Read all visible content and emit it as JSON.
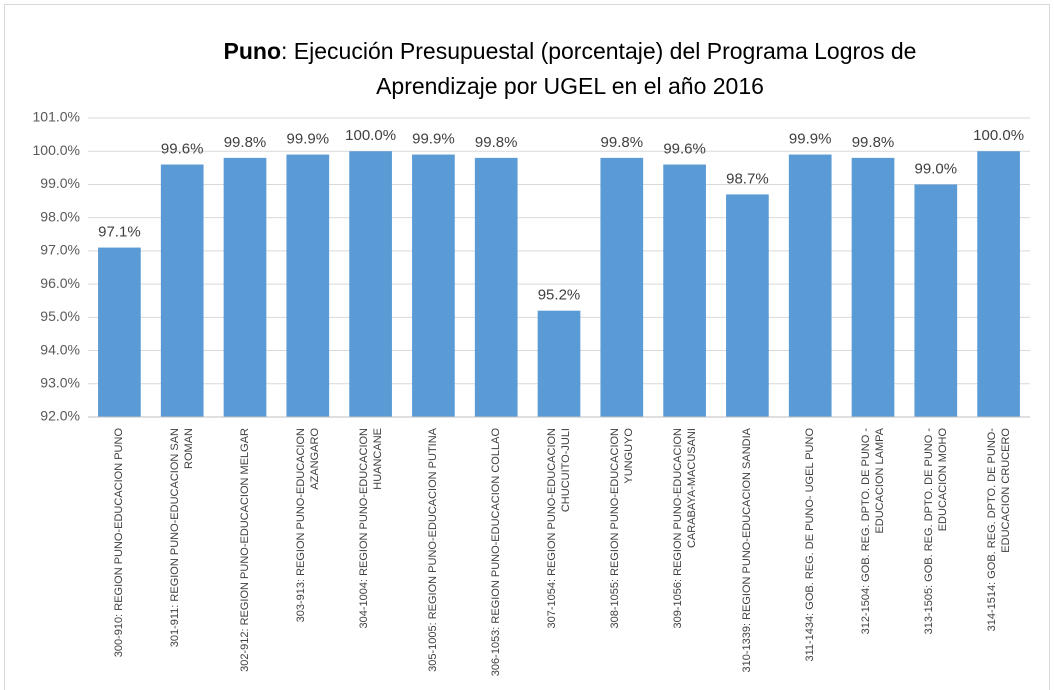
{
  "chart_data": {
    "type": "bar",
    "title": [
      "Puno",
      ": Ejecución Presupuestal (porcentaje) del Programa Logros de Aprendizaje por UGEL en el año 2016"
    ],
    "categories": [
      "300-910: REGION PUNO-EDUCACION PUNO",
      "301-911: REGION PUNO-EDUCACION SAN ROMAN",
      "302-912: REGION PUNO-EDUCACION MELGAR",
      "303-913: REGION PUNO-EDUCACION AZANGARO",
      "304-1004: REGION PUNO-EDUCACION HUANCANE",
      "305-1005: REGION PUNO-EDUCACION PUTINA",
      "306-1053: REGION PUNO-EDUCACION COLLAO",
      "307-1054: REGION PUNO-EDUCACION CHUCUITO-JULI",
      "308-1055: REGION PUNO-EDUCACION YUNGUYO",
      "309-1056: REGION PUNO-EDUCACION CARABAYA-MACUSANI",
      "310-1339: REGION PUNO-EDUCACION SANDIA",
      "311-1434: GOB. REG. DE PUNO- UGEL PUNO",
      "312-1504: GOB. REG. DPTO. DE PUNO - EDUCACION LAMPA",
      "313-1505: GOB. REG. DPTO. DE PUNO - EDUCACION MOHO",
      "314-1514: GOB. REG. DPTO. DE PUNO- EDUCACION CRUCERO"
    ],
    "values": [
      97.1,
      99.6,
      99.8,
      99.9,
      100.0,
      99.9,
      99.8,
      95.2,
      99.8,
      99.6,
      98.7,
      99.9,
      99.8,
      99.0,
      100.0
    ],
    "value_labels": [
      "97.1%",
      "99.6%",
      "99.8%",
      "99.9%",
      "100.0%",
      "99.9%",
      "99.8%",
      "95.2%",
      "99.8%",
      "99.6%",
      "98.7%",
      "99.9%",
      "99.8%",
      "99.0%",
      "100.0%"
    ],
    "color": "#5b9bd5",
    "ylim": [
      92,
      101
    ],
    "yticks": [
      {
        "value": 92,
        "label": "92.0%"
      },
      {
        "value": 93,
        "label": "93.0%"
      },
      {
        "value": 94,
        "label": "94.0%"
      },
      {
        "value": 95,
        "label": "95.0%"
      },
      {
        "value": 96,
        "label": "96.0%"
      },
      {
        "value": 97,
        "label": "97.0%"
      },
      {
        "value": 98,
        "label": "98.0%"
      },
      {
        "value": 99,
        "label": "99.0%"
      },
      {
        "value": 100,
        "label": "100.0%"
      },
      {
        "value": 101,
        "label": "101.0%"
      }
    ],
    "grid": true
  }
}
